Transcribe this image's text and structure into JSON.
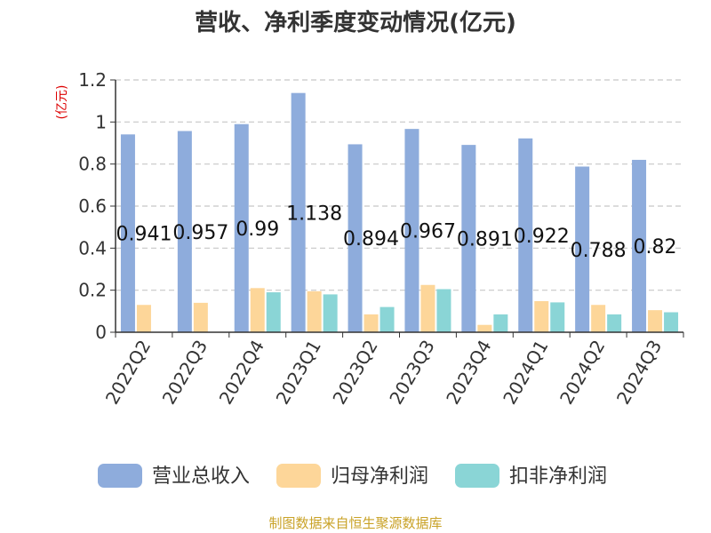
{
  "chart_data": {
    "type": "bar",
    "title": "营收、净利季度变动情况(亿元)",
    "ylabel": "(亿元)",
    "xlabel": "",
    "categories": [
      "2022Q2",
      "2022Q3",
      "2022Q4",
      "2023Q1",
      "2023Q2",
      "2023Q3",
      "2023Q4",
      "2024Q1",
      "2024Q2",
      "2024Q3"
    ],
    "ylim": [
      0,
      1.2
    ],
    "yticks": [
      0,
      0.2,
      0.4,
      0.6,
      0.8,
      1,
      1.2
    ],
    "ytick_labels": [
      "0",
      "0.2",
      "0.4",
      "0.6",
      "0.8",
      "1",
      "1.2"
    ],
    "grid": true,
    "legend_position": "bottom",
    "series": [
      {
        "name": "营业总收入",
        "color": "#8eacdc",
        "values": [
          0.941,
          0.957,
          0.99,
          1.138,
          0.894,
          0.967,
          0.891,
          0.922,
          0.788,
          0.82
        ]
      },
      {
        "name": "归母净利润",
        "color": "#fdd699",
        "values": [
          0.13,
          0.14,
          0.21,
          0.195,
          0.085,
          0.225,
          0.035,
          0.148,
          0.13,
          0.105
        ]
      },
      {
        "name": "扣非净利润",
        "color": "#8ad5d6",
        "values": [
          0,
          0,
          0.19,
          0.18,
          0.12,
          0.205,
          0.085,
          0.142,
          0.085,
          0.095
        ]
      }
    ],
    "data_labels": [
      "0.941",
      "0.957",
      "0.99",
      "1.138",
      "0.894",
      "0.967",
      "0.891",
      "0.922",
      "0.788",
      "0.82"
    ]
  },
  "footer": {
    "source": "制图数据来自恒生聚源数据库"
  }
}
